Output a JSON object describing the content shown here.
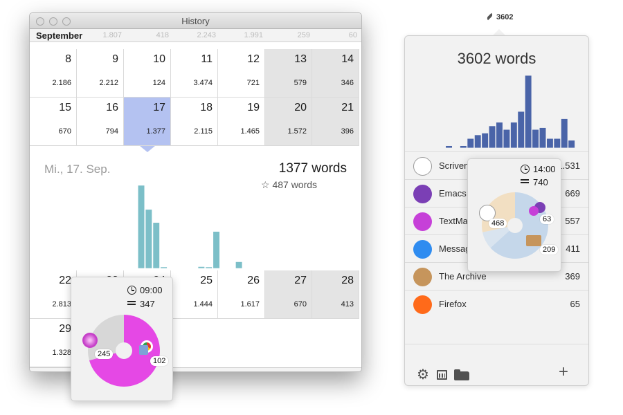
{
  "history_window": {
    "title": "History",
    "month": "September",
    "header_values": [
      "1.807",
      "418",
      "2.243",
      "1.991",
      "259",
      "60"
    ],
    "weeks": [
      [
        {
          "day": "8",
          "count": "2.186",
          "weekend": false
        },
        {
          "day": "9",
          "count": "2.212",
          "weekend": false
        },
        {
          "day": "10",
          "count": "124",
          "weekend": false
        },
        {
          "day": "11",
          "count": "3.474",
          "weekend": false
        },
        {
          "day": "12",
          "count": "721",
          "weekend": false
        },
        {
          "day": "13",
          "count": "579",
          "weekend": true
        },
        {
          "day": "14",
          "count": "346",
          "weekend": true
        }
      ],
      [
        {
          "day": "15",
          "count": "670",
          "weekend": false
        },
        {
          "day": "16",
          "count": "794",
          "weekend": false
        },
        {
          "day": "17",
          "count": "1.377",
          "weekend": false,
          "selected": true
        },
        {
          "day": "18",
          "count": "2.115",
          "weekend": false
        },
        {
          "day": "19",
          "count": "1.465",
          "weekend": false
        },
        {
          "day": "20",
          "count": "1.572",
          "weekend": true
        },
        {
          "day": "21",
          "count": "396",
          "weekend": true
        }
      ],
      [
        {
          "day": "22",
          "count": "2.813",
          "weekend": false
        },
        {
          "day": "23",
          "count": "2.0..",
          "weekend": false
        },
        {
          "day": "24",
          "count": "",
          "weekend": false
        },
        {
          "day": "25",
          "count": "1.444",
          "weekend": false
        },
        {
          "day": "26",
          "count": "1.617",
          "weekend": false
        },
        {
          "day": "27",
          "count": "670",
          "weekend": true
        },
        {
          "day": "28",
          "count": "413",
          "weekend": true
        }
      ],
      [
        {
          "day": "29",
          "count": "1.328",
          "weekend": false
        }
      ]
    ],
    "detail": {
      "date": "Mi., 17. Sep.",
      "words": "1377 words",
      "starred": "487 words",
      "star_icon": "☆",
      "hourly_bars": [
        0,
        0,
        0,
        0,
        0,
        0,
        0,
        0,
        120,
        85,
        66,
        1,
        0,
        0,
        0,
        0,
        2,
        1,
        53,
        0,
        0,
        9,
        0,
        0
      ],
      "bar_color": "#7cbfc8"
    },
    "popover": {
      "time": "09:00",
      "total": "347",
      "slices": [
        {
          "app": "TextMate",
          "value": 245,
          "label": "245",
          "color": "#e548e5"
        },
        {
          "app": "Preview+Chrome",
          "value": 102,
          "label": "102",
          "color": "#d7d7d7"
        }
      ]
    }
  },
  "menubar": {
    "count": "3602"
  },
  "panel": {
    "title": "3602 words",
    "bar_color": "#4a64a8",
    "hourly_bars": [
      0,
      1,
      0,
      1,
      5,
      7,
      8,
      12,
      14,
      10,
      14,
      20,
      40,
      10,
      11,
      5,
      5,
      16,
      4,
      0
    ],
    "apps": [
      {
        "name": "Scrivener",
        "value": "1.531",
        "icon": "scrivener-icon",
        "color": "#ffffff"
      },
      {
        "name": "Emacs",
        "value": "669",
        "icon": "emacs-icon",
        "color": "#7b3fb5"
      },
      {
        "name": "TextMate",
        "value": "557",
        "icon": "textmate-icon",
        "color": "#c640d8"
      },
      {
        "name": "Messages",
        "value": "411",
        "icon": "messages-icon",
        "color": "#2f8cf0"
      },
      {
        "name": "The Archive",
        "value": "369",
        "icon": "archive-icon",
        "color": "#c6955c"
      },
      {
        "name": "Firefox",
        "value": "65",
        "icon": "firefox-icon",
        "color": "#ff6a1a"
      }
    ],
    "popover": {
      "time": "14:00",
      "total": "740",
      "slices": [
        {
          "app": "Scrivener",
          "value": 468,
          "label": "468",
          "color": "#c5d7ea"
        },
        {
          "app": "Emacs+TextMate",
          "value": 63,
          "label": "63",
          "color": "#d9e4ef"
        },
        {
          "app": "The Archive",
          "value": 209,
          "label": "209",
          "color": "#f2dfc2"
        }
      ]
    },
    "footer": {
      "gear": "gear-icon",
      "calendar": "calendar-icon",
      "folder": "folder-icon",
      "plus": "+"
    }
  }
}
